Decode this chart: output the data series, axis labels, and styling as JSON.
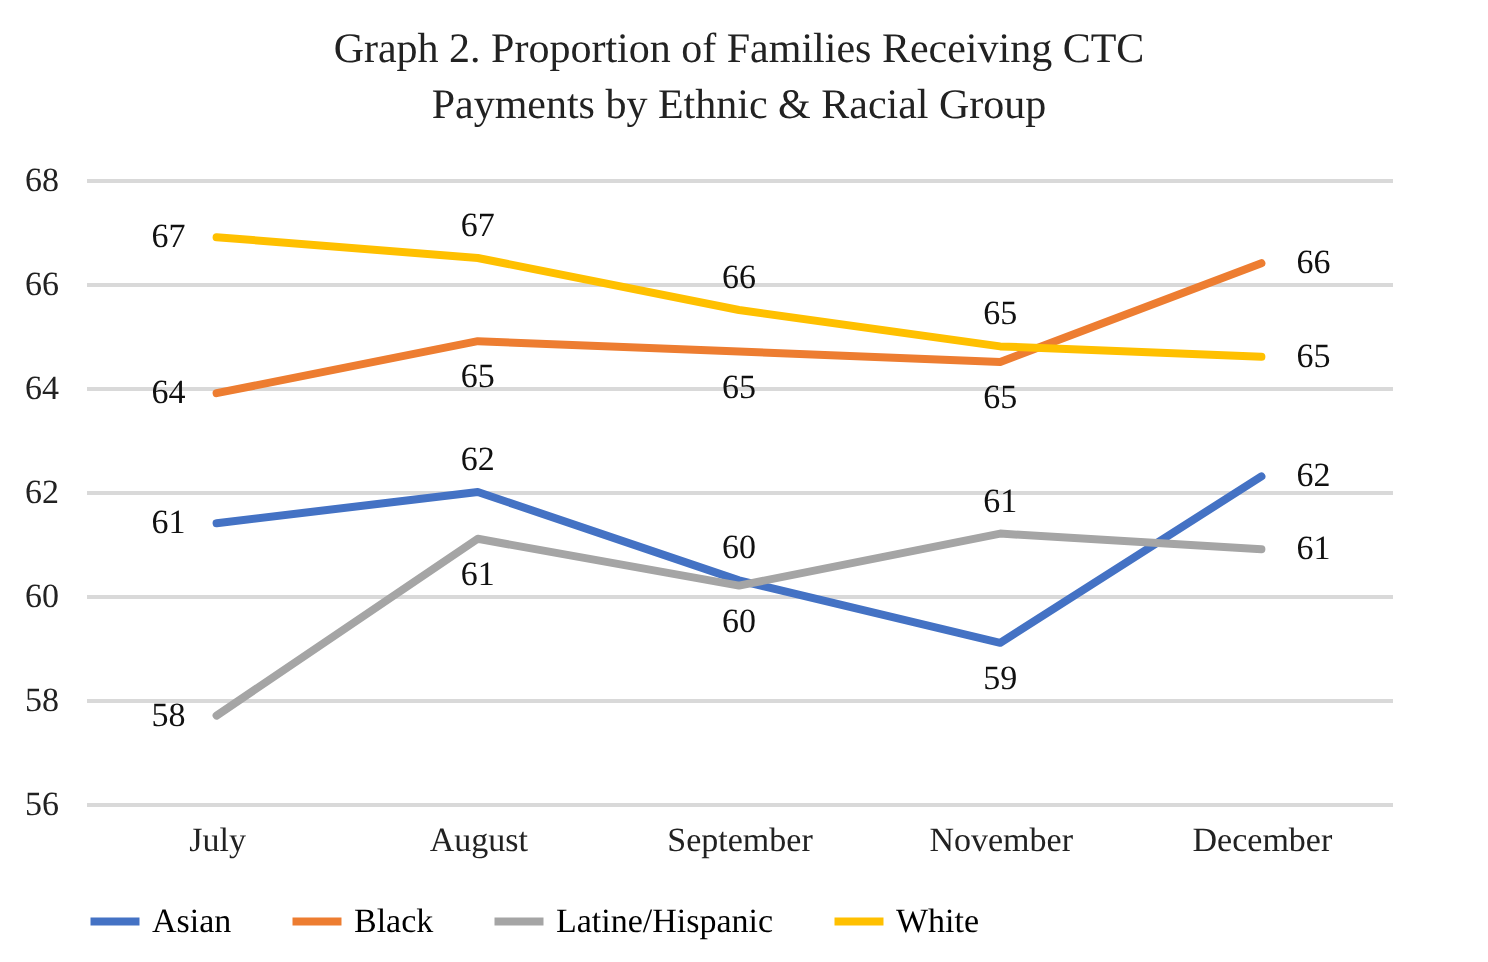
{
  "chart_data": {
    "type": "line",
    "title": "Graph 2. Proportion of Families Receiving CTC Payments by Ethnic & Racial Group",
    "categories": [
      "July",
      "August",
      "September",
      "November",
      "December"
    ],
    "ylim": [
      56,
      68
    ],
    "yticks": [
      56,
      58,
      60,
      62,
      64,
      66,
      68
    ],
    "grid": "y",
    "legend": "bottom",
    "series": [
      {
        "name": "Asian",
        "color": "#4472c4",
        "values": [
          61.4,
          62.0,
          60.3,
          59.1,
          62.3
        ],
        "value_labels": [
          "61",
          "62",
          "60",
          "59",
          "62"
        ]
      },
      {
        "name": "Black",
        "color": "#ed7d31",
        "values": [
          63.9,
          64.9,
          64.7,
          64.5,
          66.4
        ],
        "value_labels": [
          "64",
          "65",
          "65",
          "65",
          "66"
        ]
      },
      {
        "name": "Latine/Hispanic",
        "color": "#a5a5a5",
        "values": [
          57.7,
          61.1,
          60.2,
          61.2,
          60.9
        ],
        "value_labels": [
          "58",
          "61",
          "60",
          "61",
          "61"
        ]
      },
      {
        "name": "White",
        "color": "#ffc000",
        "values": [
          66.9,
          66.5,
          65.5,
          64.8,
          64.6
        ],
        "value_labels": [
          "67",
          "67",
          "66",
          "65",
          "65"
        ]
      }
    ]
  }
}
